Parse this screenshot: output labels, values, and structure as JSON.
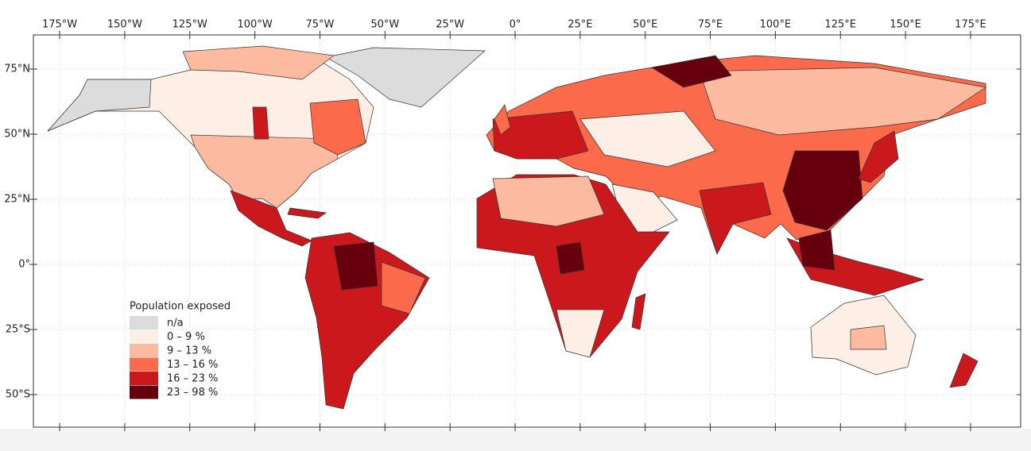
{
  "map": {
    "lon_ticks": [
      {
        "value": -175,
        "label": "175°W"
      },
      {
        "value": -150,
        "label": "150°W"
      },
      {
        "value": -125,
        "label": "125°W"
      },
      {
        "value": -100,
        "label": "100°W"
      },
      {
        "value": -75,
        "label": "75°W"
      },
      {
        "value": -50,
        "label": "50°W"
      },
      {
        "value": -25,
        "label": "25°W"
      },
      {
        "value": 0,
        "label": "0°"
      },
      {
        "value": 25,
        "label": "25°E"
      },
      {
        "value": 50,
        "label": "50°E"
      },
      {
        "value": 75,
        "label": "75°E"
      },
      {
        "value": 100,
        "label": "100°E"
      },
      {
        "value": 125,
        "label": "125°E"
      },
      {
        "value": 150,
        "label": "150°E"
      },
      {
        "value": 175,
        "label": "175°E"
      }
    ],
    "lat_ticks": [
      {
        "value": 75,
        "label": "75°N"
      },
      {
        "value": 50,
        "label": "50°N"
      },
      {
        "value": 25,
        "label": "25°N"
      },
      {
        "value": 0,
        "label": "0°"
      },
      {
        "value": -25,
        "label": "25°S"
      },
      {
        "value": -50,
        "label": "50°S"
      }
    ],
    "legend": {
      "title": "Population exposed",
      "items": [
        {
          "label": "n/a",
          "color": "#dcdcdc"
        },
        {
          "label": "0 – 9 %",
          "color": "#fdeee6"
        },
        {
          "label": "9 – 13 %",
          "color": "#fcbba1"
        },
        {
          "label": "13 – 16 %",
          "color": "#fb6a4a"
        },
        {
          "label": "16 – 23 %",
          "color": "#cb181d"
        },
        {
          "label": "23 – 98 %",
          "color": "#67000d"
        }
      ]
    }
  }
}
